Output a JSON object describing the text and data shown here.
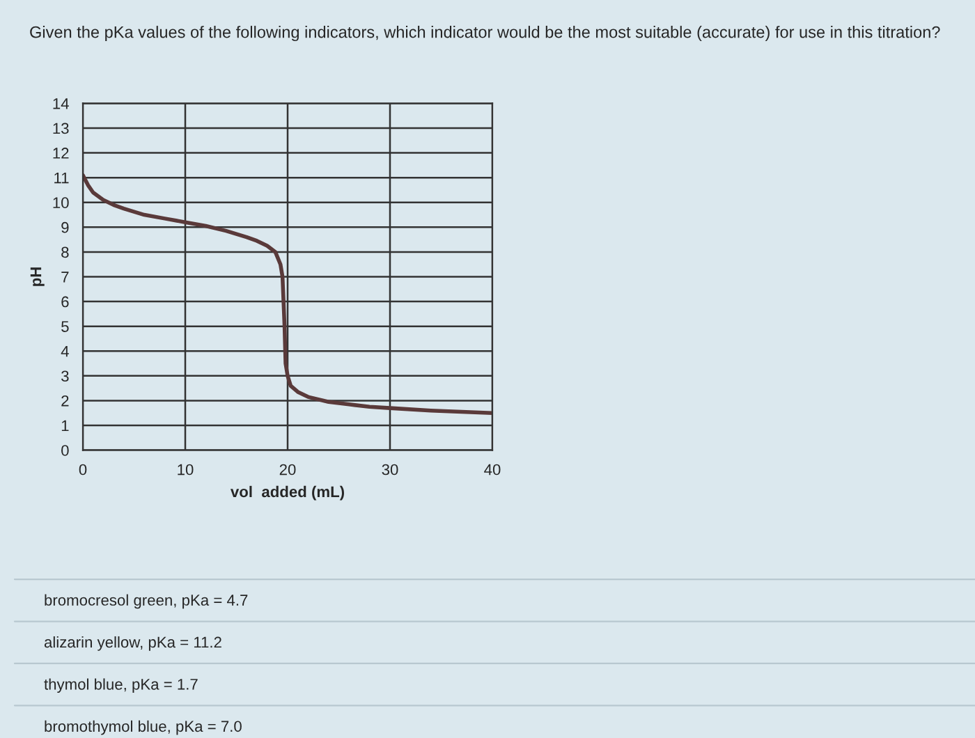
{
  "chart_data": {
    "type": "line",
    "title": "Given the pKa values of the following indicators, which indicator would be the most suitable (accurate) for use in this titration?",
    "xlabel": "vol  added (mL)",
    "ylabel": "pH",
    "series": [
      {
        "color": "#5a3a3a",
        "x": [
          0,
          0.5,
          1,
          2,
          3,
          4,
          6,
          8,
          10,
          12,
          14,
          16,
          17,
          18,
          18.8,
          19.3,
          19.5,
          19.7,
          19.8,
          20,
          20.3,
          21,
          22,
          24,
          26,
          28,
          30,
          34,
          37,
          40
        ],
        "values": [
          11.1,
          10.7,
          10.4,
          10.1,
          9.9,
          9.75,
          9.5,
          9.35,
          9.2,
          9.05,
          8.85,
          8.6,
          8.45,
          8.25,
          8.0,
          7.5,
          7.0,
          5.0,
          3.5,
          3.0,
          2.6,
          2.35,
          2.15,
          1.95,
          1.85,
          1.75,
          1.7,
          1.6,
          1.55,
          1.5
        ]
      }
    ],
    "xlim": [
      0,
      40
    ],
    "xticks": [
      0,
      10,
      20,
      30,
      40
    ],
    "ylim": [
      0,
      14
    ],
    "yticks": [
      0,
      1,
      2,
      3,
      4,
      5,
      6,
      7,
      8,
      9,
      10,
      11,
      12,
      13,
      14
    ],
    "grid": true,
    "marker": "none",
    "line_style": "solid",
    "annotations": [
      "bromocresol green, pKa = 4.7",
      "alizarin yellow, pKa = 11.2",
      "thymol blue, pKa = 1.7",
      "bromothymol blue, pKa = 7.0"
    ]
  }
}
